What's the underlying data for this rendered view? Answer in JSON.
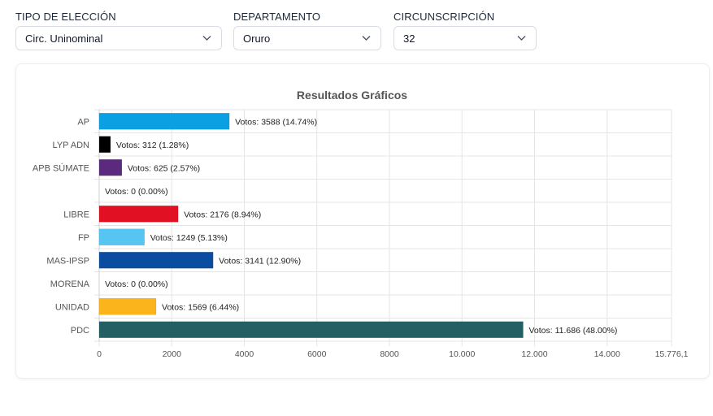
{
  "filters": {
    "tipo": {
      "label": "TIPO DE ELECCIÓN",
      "value": "Circ. Uninominal"
    },
    "departamento": {
      "label": "DEPARTAMENTO",
      "value": "Oruro"
    },
    "circunscripcion": {
      "label": "CIRCUNSCRIPCIÓN",
      "value": "32"
    }
  },
  "chart_data": {
    "type": "bar",
    "orientation": "horizontal",
    "title": "Resultados Gráficos",
    "xlabel": "",
    "ylabel": "",
    "xlim": [
      0,
      15776.1
    ],
    "grid": true,
    "categories": [
      "AP",
      "LYP ADN",
      "APB SÚMATE",
      "",
      "LIBRE",
      "FP",
      "MAS-IPSP",
      "MORENA",
      "UNIDAD",
      "PDC"
    ],
    "values": [
      3588,
      312,
      625,
      0,
      2176,
      1249,
      3141,
      0,
      1569,
      11686
    ],
    "data_labels": [
      "Votos: 3588 (14.74%)",
      "Votos: 312 (1.28%)",
      "Votos: 625 (2.57%)",
      "Votos: 0 (0.00%)",
      "Votos: 2176 (8.94%)",
      "Votos: 1249 (5.13%)",
      "Votos: 3141 (12.90%)",
      "Votos: 0 (0.00%)",
      "Votos: 1569 (6.44%)",
      "Votos: 11.686 (48.00%)"
    ],
    "colors": [
      "#0aa0e2",
      "#000000",
      "#5b2a7e",
      "#cccccc",
      "#e11022",
      "#56c5f2",
      "#0a4ca0",
      "#cccccc",
      "#fbb41c",
      "#245f63"
    ],
    "x_ticks": [
      0,
      2000,
      4000,
      6000,
      8000,
      10000,
      12000,
      14000,
      15776.1
    ],
    "x_tick_labels": [
      "0",
      "2000",
      "4000",
      "6000",
      "8000",
      "10.000",
      "12.000",
      "14.000",
      "15.776,1"
    ]
  }
}
